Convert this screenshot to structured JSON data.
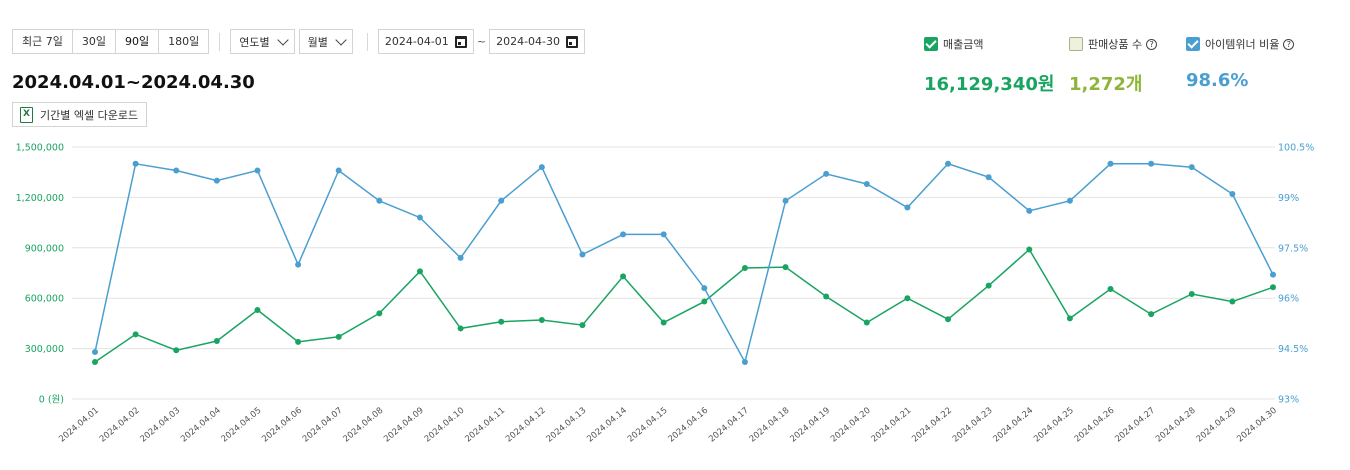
{
  "toolbar": {
    "periods": [
      "최근 7일",
      "30일",
      "90일",
      "180일"
    ],
    "year_select": "연도별",
    "month_select": "월별",
    "start_date": "2024-04-01",
    "end_date": "2024-04-30",
    "tilde": "~"
  },
  "range_title": "2024.04.01~2024.04.30",
  "excel_button": "기간별 엑셀 다운로드",
  "excel_icon": "X",
  "metrics": {
    "sales": {
      "label": "매출금액",
      "value": "16,129,340원",
      "checked": true,
      "color": "#1aa462"
    },
    "items": {
      "label": "판매상품 수",
      "value": "1,272개",
      "checked": false,
      "color": "#8fb43a",
      "help": "?"
    },
    "winner": {
      "label": "아이템위너 비율",
      "value": "98.6%",
      "checked": true,
      "color": "#4a9fd0",
      "help": "?"
    }
  },
  "chart_data": {
    "type": "line",
    "categories": [
      "2024.04.01",
      "2024.04.02",
      "2024.04.03",
      "2024.04.04",
      "2024.04.05",
      "2024.04.06",
      "2024.04.07",
      "2024.04.08",
      "2024.04.09",
      "2024.04.10",
      "2024.04.11",
      "2024.04.12",
      "2024.04.13",
      "2024.04.14",
      "2024.04.15",
      "2024.04.16",
      "2024.04.17",
      "2024.04.18",
      "2024.04.19",
      "2024.04.20",
      "2024.04.21",
      "2024.04.22",
      "2024.04.23",
      "2024.04.24",
      "2024.04.25",
      "2024.04.26",
      "2024.04.27",
      "2024.04.28",
      "2024.04.29",
      "2024.04.30"
    ],
    "series": [
      {
        "axis": "left",
        "color": "#1aa462",
        "values": [
          220000,
          385000,
          290000,
          345000,
          530000,
          340000,
          370000,
          510000,
          760000,
          420000,
          460000,
          470000,
          440000,
          730000,
          455000,
          580000,
          780000,
          785000,
          610000,
          455000,
          600000,
          475000,
          675000,
          890000,
          480000,
          655000,
          505000,
          625000,
          580000,
          665000
        ]
      },
      {
        "axis": "right",
        "color": "#4a9fd0",
        "values": [
          94.4,
          100.0,
          99.8,
          99.5,
          99.8,
          97.0,
          99.8,
          98.9,
          98.4,
          97.2,
          98.9,
          99.9,
          97.3,
          97.9,
          97.9,
          96.3,
          94.1,
          98.9,
          99.7,
          99.4,
          98.7,
          100.0,
          99.6,
          98.6,
          98.9,
          100.0,
          100.0,
          99.9,
          99.1,
          96.7
        ]
      }
    ],
    "left_axis": {
      "min": 0,
      "max": 1500000,
      "ticks": [
        "0 (원)",
        "300,000",
        "600,000",
        "900,000",
        "1,200,000",
        "1,500,000"
      ]
    },
    "right_axis": {
      "min": 93,
      "max": 100.5,
      "ticks": [
        "93%",
        "94.5%",
        "96%",
        "97.5%",
        "99%",
        "100.5%"
      ]
    },
    "grid": true
  }
}
